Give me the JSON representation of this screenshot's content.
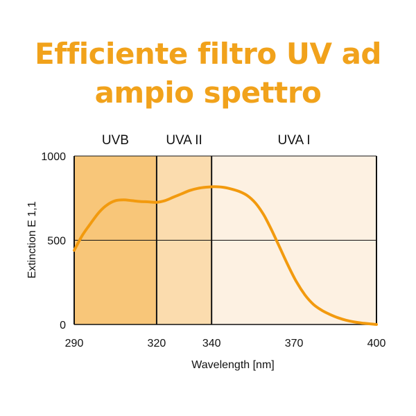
{
  "title": {
    "line1": "Efficiente filtro UV ad",
    "line2": "ampio spettro"
  },
  "colors": {
    "title": "#f1a21b",
    "curve": "#f29a0e",
    "uvb": "#f8c679",
    "uva2": "#fbdcae",
    "uva1": "#fdf1e2"
  },
  "chart_data": {
    "type": "line",
    "xlabel": "Wavelength [nm]",
    "ylabel": "Extinction E 1,1",
    "xlim": [
      290,
      400
    ],
    "ylim": [
      0,
      1000
    ],
    "x_ticks": [
      290,
      320,
      340,
      370,
      400
    ],
    "y_ticks": [
      0,
      500,
      1000
    ],
    "grid": "horizontal at 500",
    "regions": [
      {
        "label": "UVB",
        "from": 290,
        "to": 320
      },
      {
        "label": "UVA II",
        "from": 320,
        "to": 340
      },
      {
        "label": "UVA I",
        "from": 340,
        "to": 400
      }
    ],
    "series": [
      {
        "x": [
          290,
          293,
          296,
          299,
          302,
          305,
          308,
          311,
          314,
          317,
          320,
          323,
          326,
          329,
          332,
          335,
          338,
          341,
          344,
          347,
          350,
          353,
          356,
          359,
          362,
          365,
          368,
          371,
          374,
          377,
          380,
          383,
          386,
          389,
          392,
          395,
          398,
          400
        ],
        "y": [
          440,
          530,
          600,
          665,
          710,
          735,
          740,
          735,
          730,
          728,
          725,
          735,
          755,
          775,
          795,
          808,
          815,
          818,
          815,
          805,
          790,
          765,
          720,
          650,
          555,
          450,
          345,
          250,
          175,
          120,
          85,
          60,
          40,
          25,
          15,
          8,
          3,
          0
        ]
      }
    ]
  }
}
